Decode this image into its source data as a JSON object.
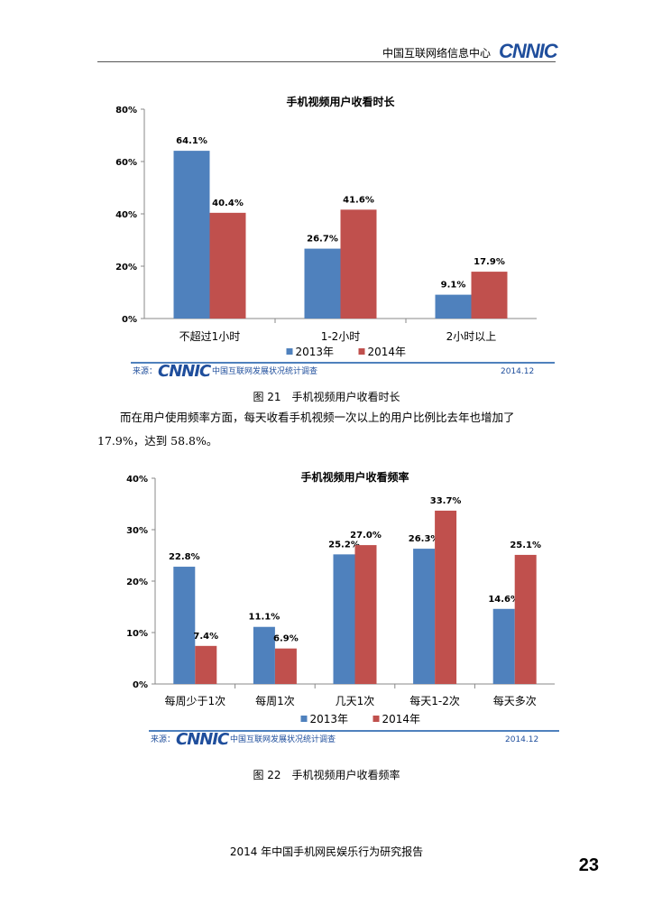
{
  "header": {
    "org": "中国互联网络信息中心",
    "logo": "CNNIC"
  },
  "charts": [
    {
      "source_label": "来源：",
      "source_org": "中国互联网发展状况统计调查",
      "source_date": "2014.12",
      "logo": "CNNIC"
    },
    {
      "source_label": "来源：",
      "source_org": "中国互联网发展状况统计调查",
      "source_date": "2014.12",
      "logo": "CNNIC"
    }
  ],
  "captions": {
    "fig21": "图 21　手机视频用户收看时长",
    "fig22": "图 22　手机视频用户收看频率"
  },
  "paragraph": "而在用户使用频率方面，每天收看手机视频一次以上的用户比例比去年也增加了 17.9%，达到 58.8%。",
  "footer": {
    "title": "2014 年中国手机网民娱乐行为研究报告",
    "page": "23"
  },
  "colors": {
    "s2013": "#4f81bd",
    "s2014": "#c0504d"
  },
  "chart_data": [
    {
      "type": "bar",
      "title": "手机视频用户收看时长",
      "categories": [
        "不超过1小时",
        "1-2小时",
        "2小时以上"
      ],
      "series": [
        {
          "name": "2013年",
          "values": [
            64.1,
            26.7,
            9.1
          ]
        },
        {
          "name": "2014年",
          "values": [
            40.4,
            41.6,
            17.9
          ]
        }
      ],
      "yticks": [
        "0%",
        "20%",
        "40%",
        "60%",
        "80%"
      ],
      "ylim": [
        0,
        80
      ],
      "legend": "bottom"
    },
    {
      "type": "bar",
      "title": "手机视频用户收看频率",
      "categories": [
        "每周少于1次",
        "每周1次",
        "几天1次",
        "每天1-2次",
        "每天多次"
      ],
      "series": [
        {
          "name": "2013年",
          "values": [
            22.8,
            11.1,
            25.2,
            26.3,
            14.6
          ]
        },
        {
          "name": "2014年",
          "values": [
            7.4,
            6.9,
            27.0,
            33.7,
            25.1
          ]
        }
      ],
      "yticks": [
        "0%",
        "10%",
        "20%",
        "30%",
        "40%"
      ],
      "ylim": [
        0,
        40
      ],
      "legend": "bottom"
    }
  ]
}
